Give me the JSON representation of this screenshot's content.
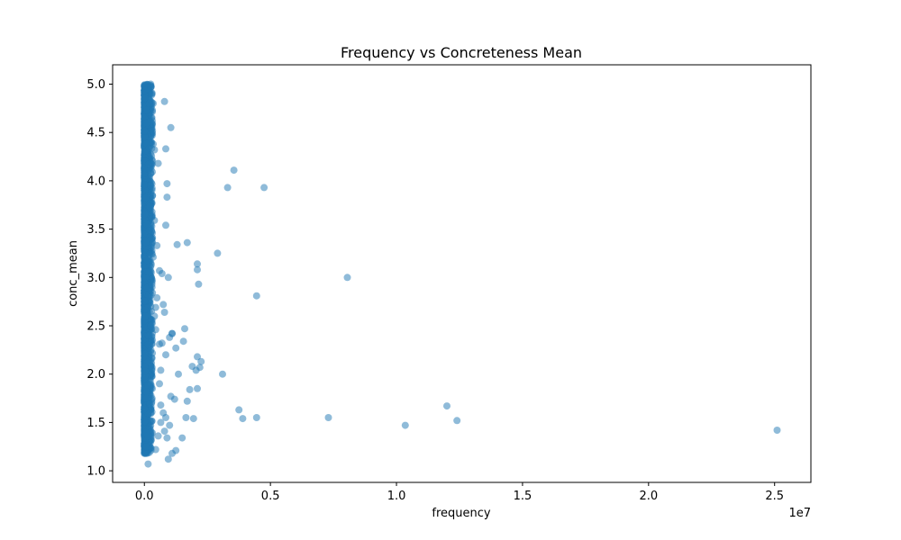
{
  "chart_data": {
    "type": "scatter",
    "title": "Frequency vs Concreteness Mean",
    "xlabel": "frequency",
    "ylabel": "conc_mean",
    "x_offset_label": "1e7",
    "xlim": [
      -1260000,
      26440000
    ],
    "ylim": [
      0.88,
      5.2
    ],
    "x_ticks": [
      0,
      5000000,
      10000000,
      15000000,
      20000000,
      25000000
    ],
    "x_tick_labels": [
      "0.0",
      "0.5",
      "1.0",
      "1.5",
      "2.0",
      "2.5"
    ],
    "y_ticks": [
      1.0,
      1.5,
      2.0,
      2.5,
      3.0,
      3.5,
      4.0,
      4.5,
      5.0
    ],
    "y_tick_labels": [
      "1.0",
      "1.5",
      "2.0",
      "2.5",
      "3.0",
      "3.5",
      "4.0",
      "4.5",
      "5.0"
    ],
    "grid": false,
    "marker_color": "#1f77b4",
    "marker_alpha": 0.5,
    "series": [
      {
        "x": [
          25100000,
          12400000,
          12000000,
          10350000,
          8050000,
          7300000,
          4750000,
          4450000,
          4450000,
          3550000,
          3300000,
          3100000,
          2900000,
          3900000,
          3750000,
          2100000,
          2100000,
          2150000,
          2100000,
          2050000,
          2200000,
          2250000,
          2100000,
          1900000,
          1700000,
          1700000,
          1800000,
          1300000,
          1250000,
          1200000,
          1100000,
          1050000,
          1000000,
          950000,
          900000,
          900000,
          850000,
          800000,
          850000,
          850000,
          800000,
          750000,
          700000,
          600000,
          650000,
          600000,
          500000,
          450000,
          400000,
          400000,
          350000,
          350000,
          300000,
          250000,
          250000,
          200000,
          1500000,
          1600000,
          1350000,
          1100000,
          1050000,
          900000,
          800000,
          650000,
          550000,
          450000,
          1950000,
          1650000,
          1550000,
          1100000,
          950000,
          850000,
          750000,
          650000,
          600000,
          500000,
          450000,
          350000,
          300000,
          1250000,
          1000000,
          700000,
          550000,
          400000,
          300000,
          250000,
          200000,
          150000,
          120000,
          100000,
          80000
        ],
        "y": [
          1.42,
          1.52,
          1.67,
          1.47,
          3.0,
          1.55,
          3.93,
          2.81,
          1.55,
          4.11,
          3.93,
          2.0,
          3.25,
          1.54,
          1.63,
          3.14,
          3.08,
          2.93,
          2.18,
          2.04,
          2.07,
          2.13,
          1.85,
          2.08,
          3.36,
          1.72,
          1.84,
          3.34,
          2.27,
          1.74,
          2.42,
          1.77,
          2.38,
          1.12,
          3.83,
          3.97,
          4.33,
          4.82,
          3.54,
          2.2,
          2.64,
          2.72,
          3.04,
          3.07,
          2.04,
          1.9,
          3.33,
          2.46,
          3.59,
          4.32,
          4.38,
          4.8,
          4.9,
          5.0,
          4.97,
          4.8,
          1.34,
          2.47,
          2.0,
          1.18,
          4.55,
          1.34,
          1.41,
          1.5,
          4.18,
          1.22,
          1.54,
          1.55,
          2.34,
          2.42,
          3.0,
          1.55,
          1.6,
          1.68,
          2.31,
          2.79,
          2.69,
          3.21,
          2.93,
          1.21,
          1.47,
          2.32,
          1.36,
          2.6,
          2.39,
          3.95,
          3.49,
          1.07,
          2.12,
          4.6,
          1.25
        ]
      }
    ],
    "dense_cluster": {
      "x_range": [
        0,
        320000
      ],
      "y_range": [
        1.18,
        5.0
      ],
      "approx_count": 2000
    }
  }
}
